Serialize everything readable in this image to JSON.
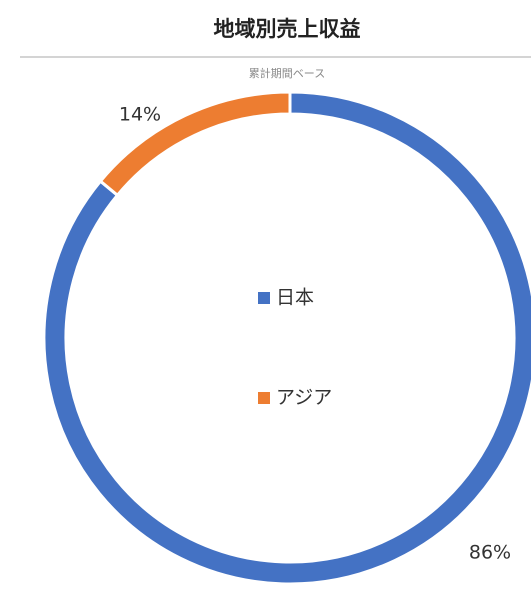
{
  "chart_data": {
    "type": "donut",
    "title": "地域別売上収益",
    "subtitle": "累計期間ベース",
    "categories": [
      "日本",
      "アジア"
    ],
    "values": [
      86,
      14
    ],
    "value_labels": [
      "86%",
      "14%"
    ],
    "colors": [
      "#4472c4",
      "#ed7d31"
    ]
  }
}
